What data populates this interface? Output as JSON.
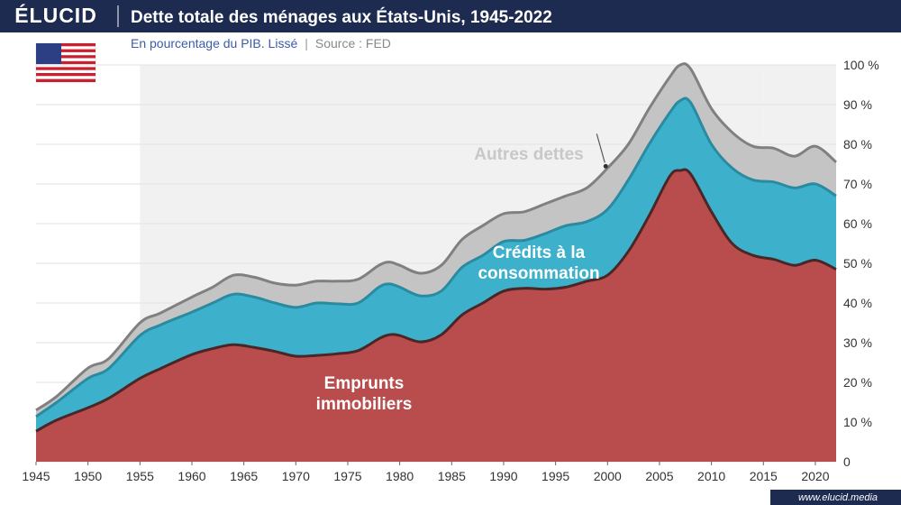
{
  "brand": "ÉLUCID",
  "footer": "www.elucid.media",
  "chart_data": {
    "type": "stacked_area",
    "title": "Dette totale des ménages aux États-Unis, 1945-2022",
    "subtitle": "En pourcentage du PIB. Lissé",
    "separator": "|",
    "source": "Source : FED",
    "x": [
      1945,
      1947,
      1950,
      1952,
      1955,
      1957,
      1960,
      1962,
      1964,
      1966,
      1968,
      1970,
      1972,
      1974,
      1976,
      1978,
      1979,
      1980,
      1982,
      1984,
      1986,
      1988,
      1990,
      1992,
      1994,
      1996,
      1998,
      2000,
      2002,
      2004,
      2006,
      2007,
      2008,
      2010,
      2012,
      2014,
      2016,
      2018,
      2020,
      2022
    ],
    "series": [
      {
        "name": "Emprunts immobiliers",
        "color": "#b94c4c",
        "line_color": "#4a2626",
        "values": [
          7.7,
          10.5,
          13.6,
          16,
          21,
          23.5,
          27,
          28.5,
          29.5,
          28.8,
          27.8,
          26.6,
          26.8,
          27.2,
          28,
          31,
          32,
          31.8,
          30.2,
          32,
          37,
          40,
          43,
          43.7,
          43.5,
          44,
          45.5,
          47,
          53,
          62,
          72,
          73.4,
          72.5,
          63,
          55,
          52,
          51,
          49.5,
          50.8,
          48.5
        ]
      },
      {
        "name": "Crédits à la consommation",
        "color": "#3db1cc",
        "line_color": "#2a8aa0",
        "values": [
          3.7,
          4.5,
          7.4,
          7.5,
          10.8,
          11,
          10.7,
          11.5,
          12.7,
          12.7,
          12.2,
          12.3,
          13.2,
          12.6,
          12,
          13,
          12.8,
          12.2,
          11.6,
          11,
          12,
          12,
          12.5,
          12.1,
          14,
          15.5,
          15,
          16.6,
          18,
          18,
          16,
          17.6,
          18,
          17,
          19,
          19,
          19.5,
          19.5,
          19.2,
          18.5
        ]
      },
      {
        "name": "Autres dettes",
        "color": "#c4c4c4",
        "line_color": "#808080",
        "values": [
          1.6,
          1.5,
          2.6,
          2.5,
          3.2,
          3,
          3.8,
          4,
          4.8,
          5,
          5,
          5.6,
          5.5,
          5.7,
          6,
          5.5,
          5.5,
          5.5,
          5.7,
          6.5,
          7,
          7.5,
          7,
          7.2,
          7.5,
          7.5,
          8.5,
          10.4,
          9,
          9,
          9,
          9,
          8.5,
          9,
          9,
          8.5,
          8.5,
          8,
          9.5,
          8.5
        ]
      }
    ],
    "xlim": [
      1945,
      2022
    ],
    "xticks": [
      1945,
      1950,
      1955,
      1960,
      1965,
      1970,
      1975,
      1980,
      1985,
      1990,
      1995,
      2000,
      2005,
      2010,
      2015,
      2020
    ],
    "ylim": [
      0,
      100
    ],
    "yticks": [
      0,
      {
        "value": 10,
        "label": "10 %"
      },
      {
        "value": 20,
        "label": "20 %"
      },
      {
        "value": 30,
        "label": "30 %"
      },
      {
        "value": 40,
        "label": "40 %"
      },
      {
        "value": 50,
        "label": "50 %"
      },
      {
        "value": 60,
        "label": "60 %"
      },
      {
        "value": 70,
        "label": "70 %"
      },
      {
        "value": 80,
        "label": "80 %"
      },
      {
        "value": 90,
        "label": "90 %"
      },
      {
        "value": 100,
        "label": "100 %"
      }
    ],
    "grid": true
  }
}
